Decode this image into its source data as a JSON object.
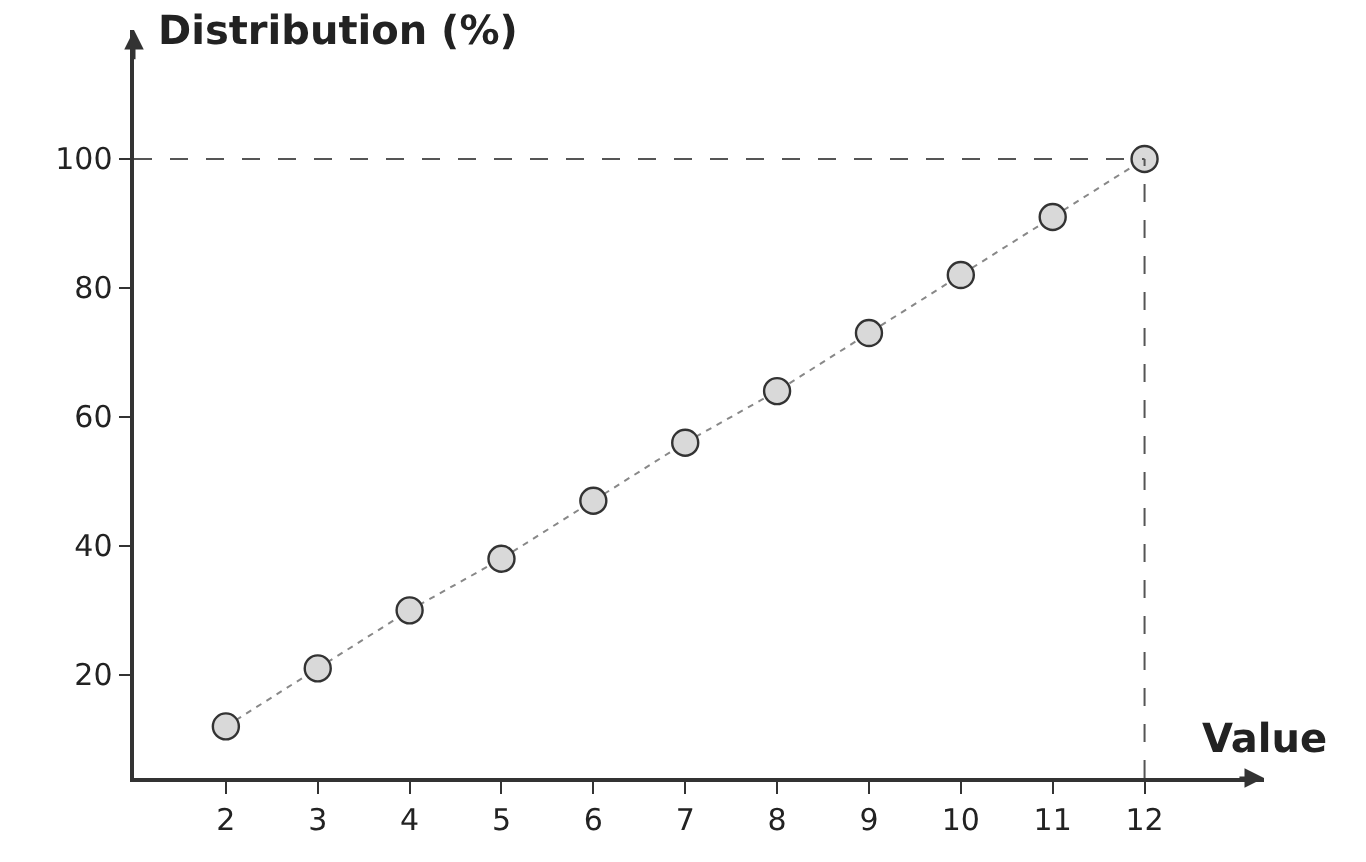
{
  "chart_data": {
    "type": "line",
    "xlabel": "Value",
    "ylabel": "Distribution (%)",
    "x": [
      2,
      3,
      4,
      5,
      6,
      7,
      8,
      9,
      10,
      11,
      12
    ],
    "series": [
      {
        "color": "#d9d9d9",
        "values": [
          12,
          21,
          30,
          38,
          47,
          56,
          64,
          73,
          82,
          91,
          100
        ]
      }
    ],
    "marker": "circle",
    "line_style": "dotted",
    "xlim": [
      1,
      13.3
    ],
    "ylim": [
      4,
      120
    ],
    "xticks": [
      2,
      3,
      4,
      5,
      6,
      7,
      8,
      9,
      10,
      11,
      12
    ],
    "yticks": [
      20,
      40,
      60,
      80,
      100
    ],
    "ref_lines": [
      {
        "axis": "y",
        "value": 100,
        "line_style": "dashed",
        "color": "#555555"
      },
      {
        "axis": "x",
        "value": 12,
        "line_style": "dashed",
        "color": "#555555"
      }
    ]
  }
}
